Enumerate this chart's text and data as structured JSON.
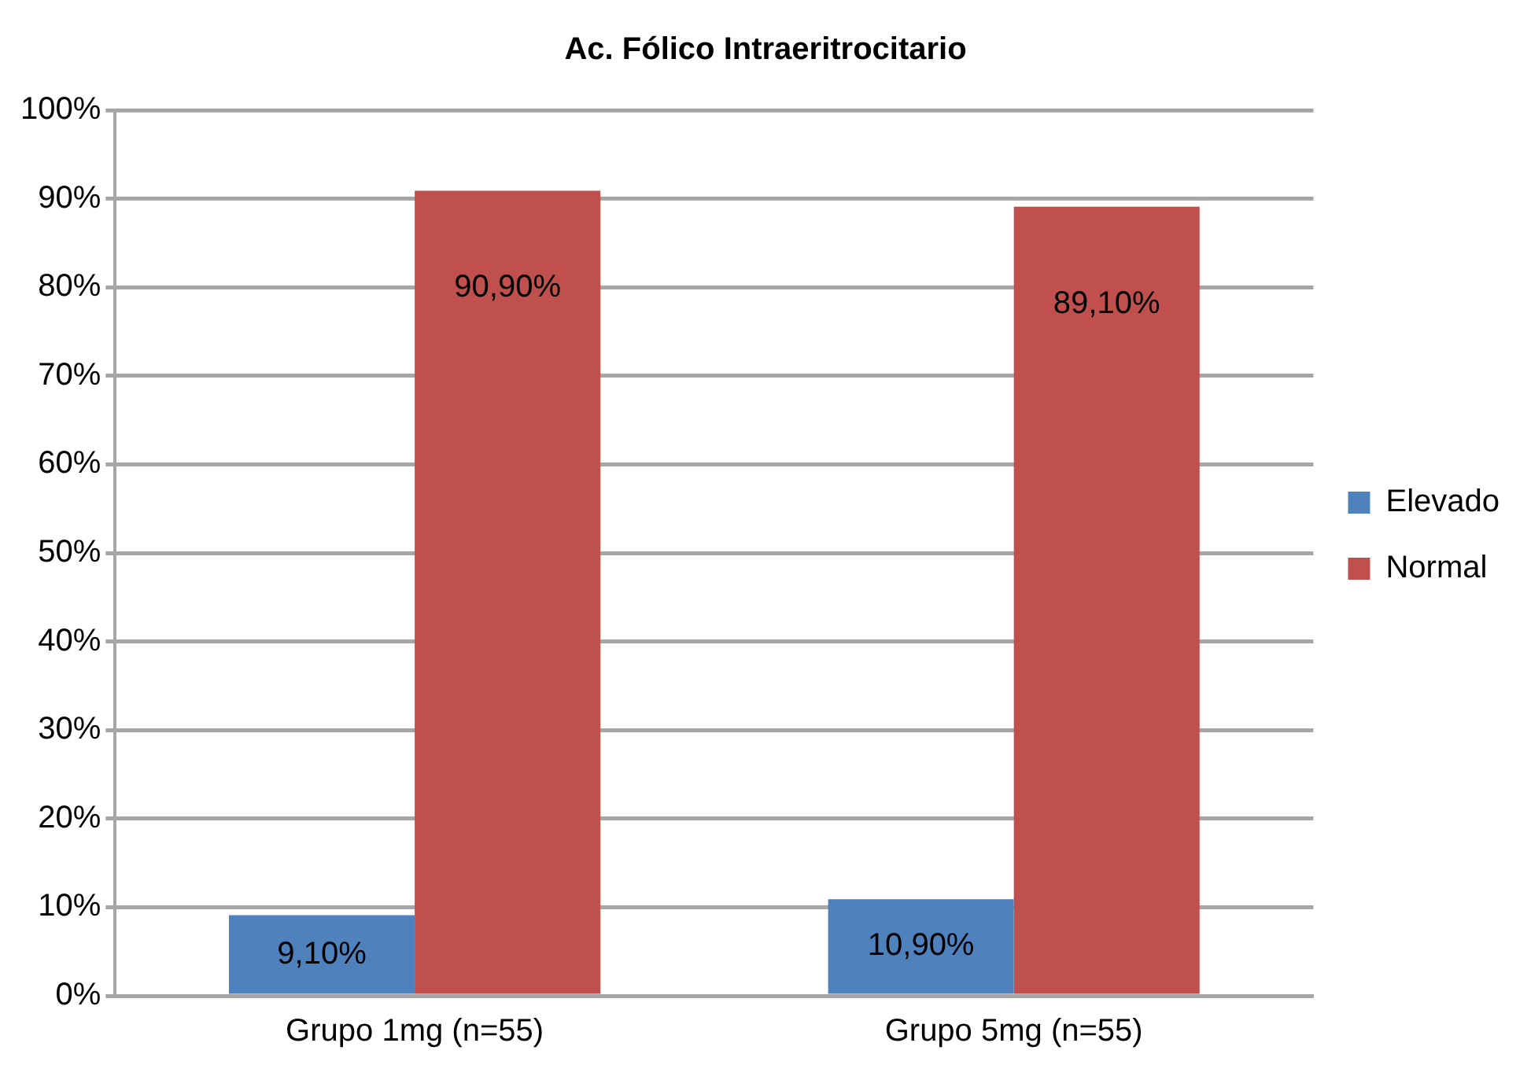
{
  "chart_data": {
    "type": "bar",
    "title": "Ac. Fólico Intraeritrocitario",
    "categories": [
      "Grupo 1mg (n=55)",
      "Grupo 5mg (n=55)"
    ],
    "series": [
      {
        "name": "Elevado",
        "color": "#4f81bd",
        "values": [
          9.1,
          10.9
        ],
        "value_labels": [
          "9,10%",
          "10,90%"
        ]
      },
      {
        "name": "Normal",
        "color": "#c0504d",
        "values": [
          90.9,
          89.1
        ],
        "value_labels": [
          "90,90%",
          "89,10%"
        ]
      }
    ],
    "ylim": [
      0,
      100
    ],
    "yticks": [
      {
        "value": 0,
        "label": "0%"
      },
      {
        "value": 10,
        "label": "10%"
      },
      {
        "value": 20,
        "label": "20%"
      },
      {
        "value": 30,
        "label": "30%"
      },
      {
        "value": 40,
        "label": "40%"
      },
      {
        "value": 50,
        "label": "50%"
      },
      {
        "value": 60,
        "label": "60%"
      },
      {
        "value": 70,
        "label": "70%"
      },
      {
        "value": 80,
        "label": "80%"
      },
      {
        "value": 90,
        "label": "90%"
      },
      {
        "value": 100,
        "label": "100%"
      }
    ],
    "grid": "y",
    "legend": "right"
  }
}
